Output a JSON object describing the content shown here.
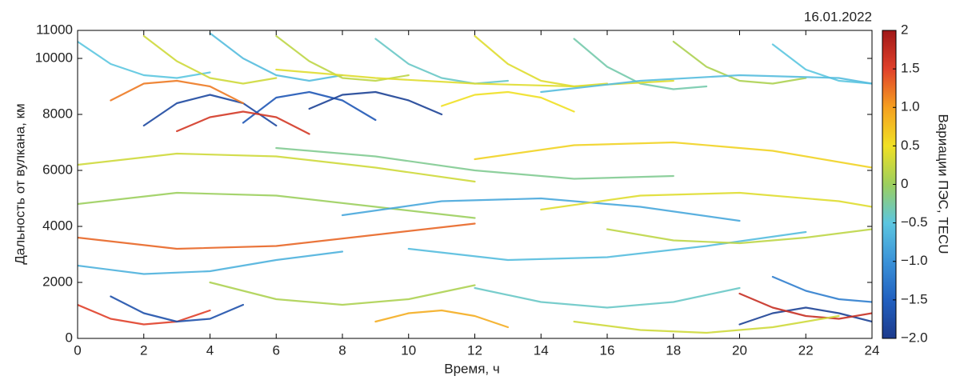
{
  "chart_data": {
    "type": "line",
    "title": "16.01.2022",
    "xlabel": "Время, ч",
    "ylabel": "Дальность от вулкана, км",
    "colorbar_label": "Вариации ПЭС, TECU",
    "xlim": [
      0,
      24
    ],
    "xticks": [
      0,
      2,
      4,
      6,
      8,
      10,
      12,
      14,
      16,
      18,
      20,
      22,
      24
    ],
    "ylim": [
      0,
      11000
    ],
    "yticks": [
      0,
      2000,
      4000,
      6000,
      8000,
      10000,
      11000
    ],
    "clim": [
      -2,
      2
    ],
    "cticks": [
      2,
      1.5,
      {
        "value": 1,
        "label": "1.0"
      },
      0.5,
      0,
      {
        "value": -0.5,
        "label": "−0.5"
      },
      {
        "value": -1,
        "label": "−1.0"
      },
      {
        "value": -1.5,
        "label": "−1.5"
      },
      {
        "value": -2,
        "label": "−2.0"
      }
    ],
    "colormap": [
      "#1c3a8c",
      "#2160c0",
      "#3a92d8",
      "#5cc6e0",
      "#9ccf5e",
      "#f0e024",
      "#f5a020",
      "#e0402a",
      "#a01818"
    ],
    "tracks": [
      {
        "x": [
          0,
          1,
          2,
          3,
          4
        ],
        "values": [
          10600,
          9800,
          9400,
          9300,
          9500
        ],
        "tec": -0.5
      },
      {
        "x": [
          2,
          3,
          4,
          5,
          6
        ],
        "values": [
          10800,
          9900,
          9300,
          9100,
          9300
        ],
        "tec": 0.3
      },
      {
        "x": [
          4,
          5,
          6,
          7,
          8
        ],
        "values": [
          10900,
          10000,
          9400,
          9200,
          9400
        ],
        "tec": -0.6
      },
      {
        "x": [
          6,
          7,
          8,
          9,
          10
        ],
        "values": [
          10800,
          9900,
          9300,
          9200,
          9400
        ],
        "tec": 0.2
      },
      {
        "x": [
          9,
          10,
          11,
          12,
          13
        ],
        "values": [
          10700,
          9800,
          9300,
          9100,
          9200
        ],
        "tec": -0.4
      },
      {
        "x": [
          12,
          13,
          14,
          15,
          16
        ],
        "values": [
          10800,
          9800,
          9200,
          9000,
          9100
        ],
        "tec": 0.4
      },
      {
        "x": [
          15,
          16,
          17,
          18,
          19
        ],
        "values": [
          10700,
          9700,
          9100,
          8900,
          9000
        ],
        "tec": -0.3
      },
      {
        "x": [
          18,
          19,
          20,
          21,
          22
        ],
        "values": [
          10600,
          9700,
          9200,
          9100,
          9300
        ],
        "tec": 0.1
      },
      {
        "x": [
          21,
          22,
          23,
          24
        ],
        "values": [
          10500,
          9600,
          9200,
          9100
        ],
        "tec": -0.5
      },
      {
        "x": [
          2,
          3,
          4,
          5,
          6
        ],
        "values": [
          7600,
          8400,
          8700,
          8400,
          7600
        ],
        "tec": -1.8
      },
      {
        "x": [
          5,
          6,
          7,
          8,
          9
        ],
        "values": [
          7700,
          8600,
          8800,
          8500,
          7800
        ],
        "tec": -1.6
      },
      {
        "x": [
          1,
          2,
          3,
          4,
          5
        ],
        "values": [
          8500,
          9100,
          9200,
          9000,
          8400
        ],
        "tec": 1.2
      },
      {
        "x": [
          7,
          8,
          9,
          10,
          11
        ],
        "values": [
          8200,
          8700,
          8800,
          8500,
          8000
        ],
        "tec": -1.9
      },
      {
        "x": [
          3,
          4,
          5,
          6,
          7
        ],
        "values": [
          7400,
          7900,
          8100,
          7900,
          7300
        ],
        "tec": 1.6
      },
      {
        "x": [
          11,
          12,
          13,
          14,
          15
        ],
        "values": [
          8300,
          8700,
          8800,
          8600,
          8100
        ],
        "tec": 0.5
      },
      {
        "x": [
          0,
          3,
          6,
          9,
          12
        ],
        "values": [
          6200,
          6600,
          6500,
          6100,
          5600
        ],
        "tec": 0.3
      },
      {
        "x": [
          6,
          9,
          12,
          15,
          18
        ],
        "values": [
          6800,
          6500,
          6000,
          5700,
          5800
        ],
        "tec": -0.2
      },
      {
        "x": [
          12,
          15,
          18,
          21,
          24
        ],
        "values": [
          6400,
          6900,
          7000,
          6700,
          6100
        ],
        "tec": 0.6
      },
      {
        "x": [
          0,
          3,
          6,
          9,
          12
        ],
        "values": [
          4800,
          5200,
          5100,
          4700,
          4300
        ],
        "tec": 0
      },
      {
        "x": [
          8,
          11,
          14,
          17,
          20
        ],
        "values": [
          4400,
          4900,
          5000,
          4700,
          4200
        ],
        "tec": -0.8
      },
      {
        "x": [
          14,
          17,
          20,
          23,
          24
        ],
        "values": [
          4600,
          5100,
          5200,
          4900,
          4700
        ],
        "tec": 0.4
      },
      {
        "x": [
          0,
          3,
          6,
          9,
          12
        ],
        "values": [
          3600,
          3200,
          3300,
          3700,
          4100
        ],
        "tec": 1.3
      },
      {
        "x": [
          10,
          13,
          16,
          19,
          22
        ],
        "values": [
          3200,
          2800,
          2900,
          3300,
          3800
        ],
        "tec": -0.6
      },
      {
        "x": [
          16,
          18,
          20,
          22,
          24
        ],
        "values": [
          3900,
          3500,
          3400,
          3600,
          3900
        ],
        "tec": 0.2
      },
      {
        "x": [
          0,
          1,
          2,
          3,
          4
        ],
        "values": [
          1200,
          700,
          500,
          600,
          1000
        ],
        "tec": 1.5
      },
      {
        "x": [
          1,
          2,
          3,
          4,
          5
        ],
        "values": [
          1500,
          900,
          600,
          700,
          1200
        ],
        "tec": -1.7
      },
      {
        "x": [
          4,
          6,
          8,
          10,
          12
        ],
        "values": [
          2000,
          1400,
          1200,
          1400,
          1900
        ],
        "tec": 0.1
      },
      {
        "x": [
          9,
          10,
          11,
          12,
          13
        ],
        "values": [
          600,
          900,
          1000,
          800,
          400
        ],
        "tec": 0.9
      },
      {
        "x": [
          12,
          14,
          16,
          18,
          20
        ],
        "values": [
          1800,
          1300,
          1100,
          1300,
          1800
        ],
        "tec": -0.4
      },
      {
        "x": [
          20,
          21,
          22,
          23,
          24
        ],
        "values": [
          500,
          900,
          1100,
          900,
          600
        ],
        "tec": -1.9
      },
      {
        "x": [
          20,
          21,
          22,
          23,
          24
        ],
        "values": [
          1600,
          1100,
          800,
          700,
          900
        ],
        "tec": 1.7
      },
      {
        "x": [
          21,
          22,
          23,
          24
        ],
        "values": [
          2200,
          1700,
          1400,
          1300
        ],
        "tec": -1.2
      },
      {
        "x": [
          15,
          17,
          19,
          21,
          23
        ],
        "values": [
          600,
          300,
          200,
          400,
          800
        ],
        "tec": 0.3
      },
      {
        "x": [
          0,
          2,
          4,
          6,
          8
        ],
        "values": [
          2600,
          2300,
          2400,
          2800,
          3100
        ],
        "tec": -0.7
      },
      {
        "x": [
          6,
          9,
          12,
          15,
          18
        ],
        "values": [
          9600,
          9300,
          9100,
          9000,
          9200
        ],
        "tec": 0.4
      },
      {
        "x": [
          14,
          17,
          20,
          23,
          24
        ],
        "values": [
          8800,
          9200,
          9400,
          9300,
          9100
        ],
        "tec": -0.6
      }
    ]
  }
}
